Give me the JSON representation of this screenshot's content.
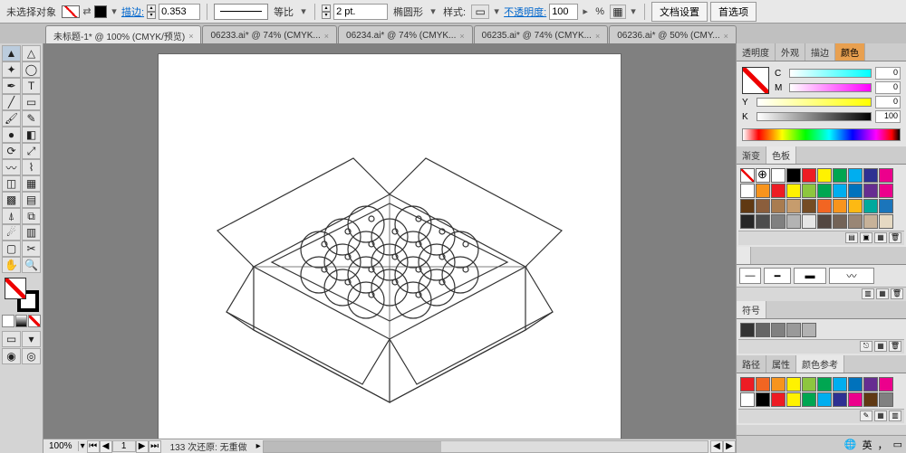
{
  "ctrlbar": {
    "no_selection": "未选择对象",
    "stroke_label": "描边:",
    "stroke_val": "0.353",
    "uniform": "等比",
    "pt_val": "2 pt.",
    "shape": "椭圆形",
    "style_label": "样式:",
    "opacity_label": "不透明度:",
    "opacity_val": "100",
    "percent": "%",
    "doc_setup": "文档设置",
    "prefs": "首选项"
  },
  "tabs": [
    {
      "label": "未标题-1* @ 100% (CMYK/预览)",
      "active": true
    },
    {
      "label": "06233.ai* @ 74% (CMYK...",
      "active": false
    },
    {
      "label": "06234.ai* @ 74% (CMYK...",
      "active": false
    },
    {
      "label": "06235.ai* @ 74% (CMYK...",
      "active": false
    },
    {
      "label": "06236.ai* @ 50% (CMY...",
      "active": false
    }
  ],
  "tools": [
    [
      "selection",
      "direct-select"
    ],
    [
      "wand",
      "lasso"
    ],
    [
      "pen",
      "type"
    ],
    [
      "line",
      "rect"
    ],
    [
      "brush",
      "pencil"
    ],
    [
      "blob",
      "eraser"
    ],
    [
      "rotate",
      "scale"
    ],
    [
      "width",
      "warp"
    ],
    [
      "shape-builder",
      "perspective"
    ],
    [
      "mesh",
      "gradient"
    ],
    [
      "eyedropper",
      "blend"
    ],
    [
      "symbol",
      "graph"
    ],
    [
      "artboard",
      "slice"
    ],
    [
      "hand",
      "zoom"
    ]
  ],
  "tool_glyphs": {
    "selection": "▲",
    "direct-select": "△",
    "wand": "✦",
    "lasso": "◯",
    "pen": "✒",
    "type": "T",
    "line": "╱",
    "rect": "▭",
    "brush": "🖌",
    "pencil": "✎",
    "blob": "●",
    "eraser": "◧",
    "rotate": "⟳",
    "scale": "⤢",
    "width": "〰",
    "warp": "⌇",
    "shape-builder": "◫",
    "perspective": "▦",
    "mesh": "▩",
    "gradient": "▤",
    "eyedropper": "⍋",
    "blend": "⧉",
    "symbol": "☄",
    "graph": "▥",
    "artboard": "▢",
    "slice": "✂",
    "hand": "✋",
    "zoom": "🔍"
  },
  "status": {
    "zoom": "100%",
    "page": "1",
    "undo_text": "133 次还原: 无重做"
  },
  "right": {
    "tabs1": [
      "透明度",
      "外观",
      "描边",
      "颜色"
    ],
    "cmyk": [
      {
        "ch": "C",
        "val": "0"
      },
      {
        "ch": "M",
        "val": "0"
      },
      {
        "ch": "Y",
        "val": "0"
      },
      {
        "ch": "K",
        "val": "100"
      }
    ],
    "tabs2": [
      "渐变",
      "色板"
    ]
  },
  "swatches_main": [
    "none",
    "reg",
    "#ffffff",
    "#000000",
    "#ed1c24",
    "#fff200",
    "#00a651",
    "#00aeef",
    "#2e3192",
    "#ec008c",
    "#ffffff",
    "#f7941d",
    "#ed1c24",
    "#fff200",
    "#8dc63f",
    "#00a651",
    "#00aeef",
    "#0072bc",
    "#662d91",
    "#ec008c",
    "#603913",
    "#8b5e3c",
    "#a97c50",
    "#c69c6d",
    "#754c24",
    "#f26522",
    "#f7941d",
    "#fdb913",
    "#00a99d",
    "#1b75bb",
    "#262626",
    "#4d4d4d",
    "#808080",
    "#b3b3b3",
    "#e6e6e6",
    "#534741",
    "#736357",
    "#998675",
    "#c7b299",
    "#e5d9c3"
  ],
  "swatches_b": [
    "#333333",
    "#666666",
    "#808080",
    "#999999",
    "#b2b2b2"
  ],
  "swatches_c": [
    "#ed1c24",
    "#f26522",
    "#f7941d",
    "#fff200",
    "#8dc63f",
    "#00a651",
    "#00aeef",
    "#0072bc",
    "#662d91",
    "#ec008c",
    "#ffffff",
    "#000000",
    "#ed1c24",
    "#fff200",
    "#00a651",
    "#00aeef",
    "#2e3192",
    "#ec008c",
    "#603913",
    "#808080"
  ],
  "tabs3": [
    "符号"
  ],
  "tabs4": [
    "路径",
    "属性",
    "颜色参考"
  ]
}
